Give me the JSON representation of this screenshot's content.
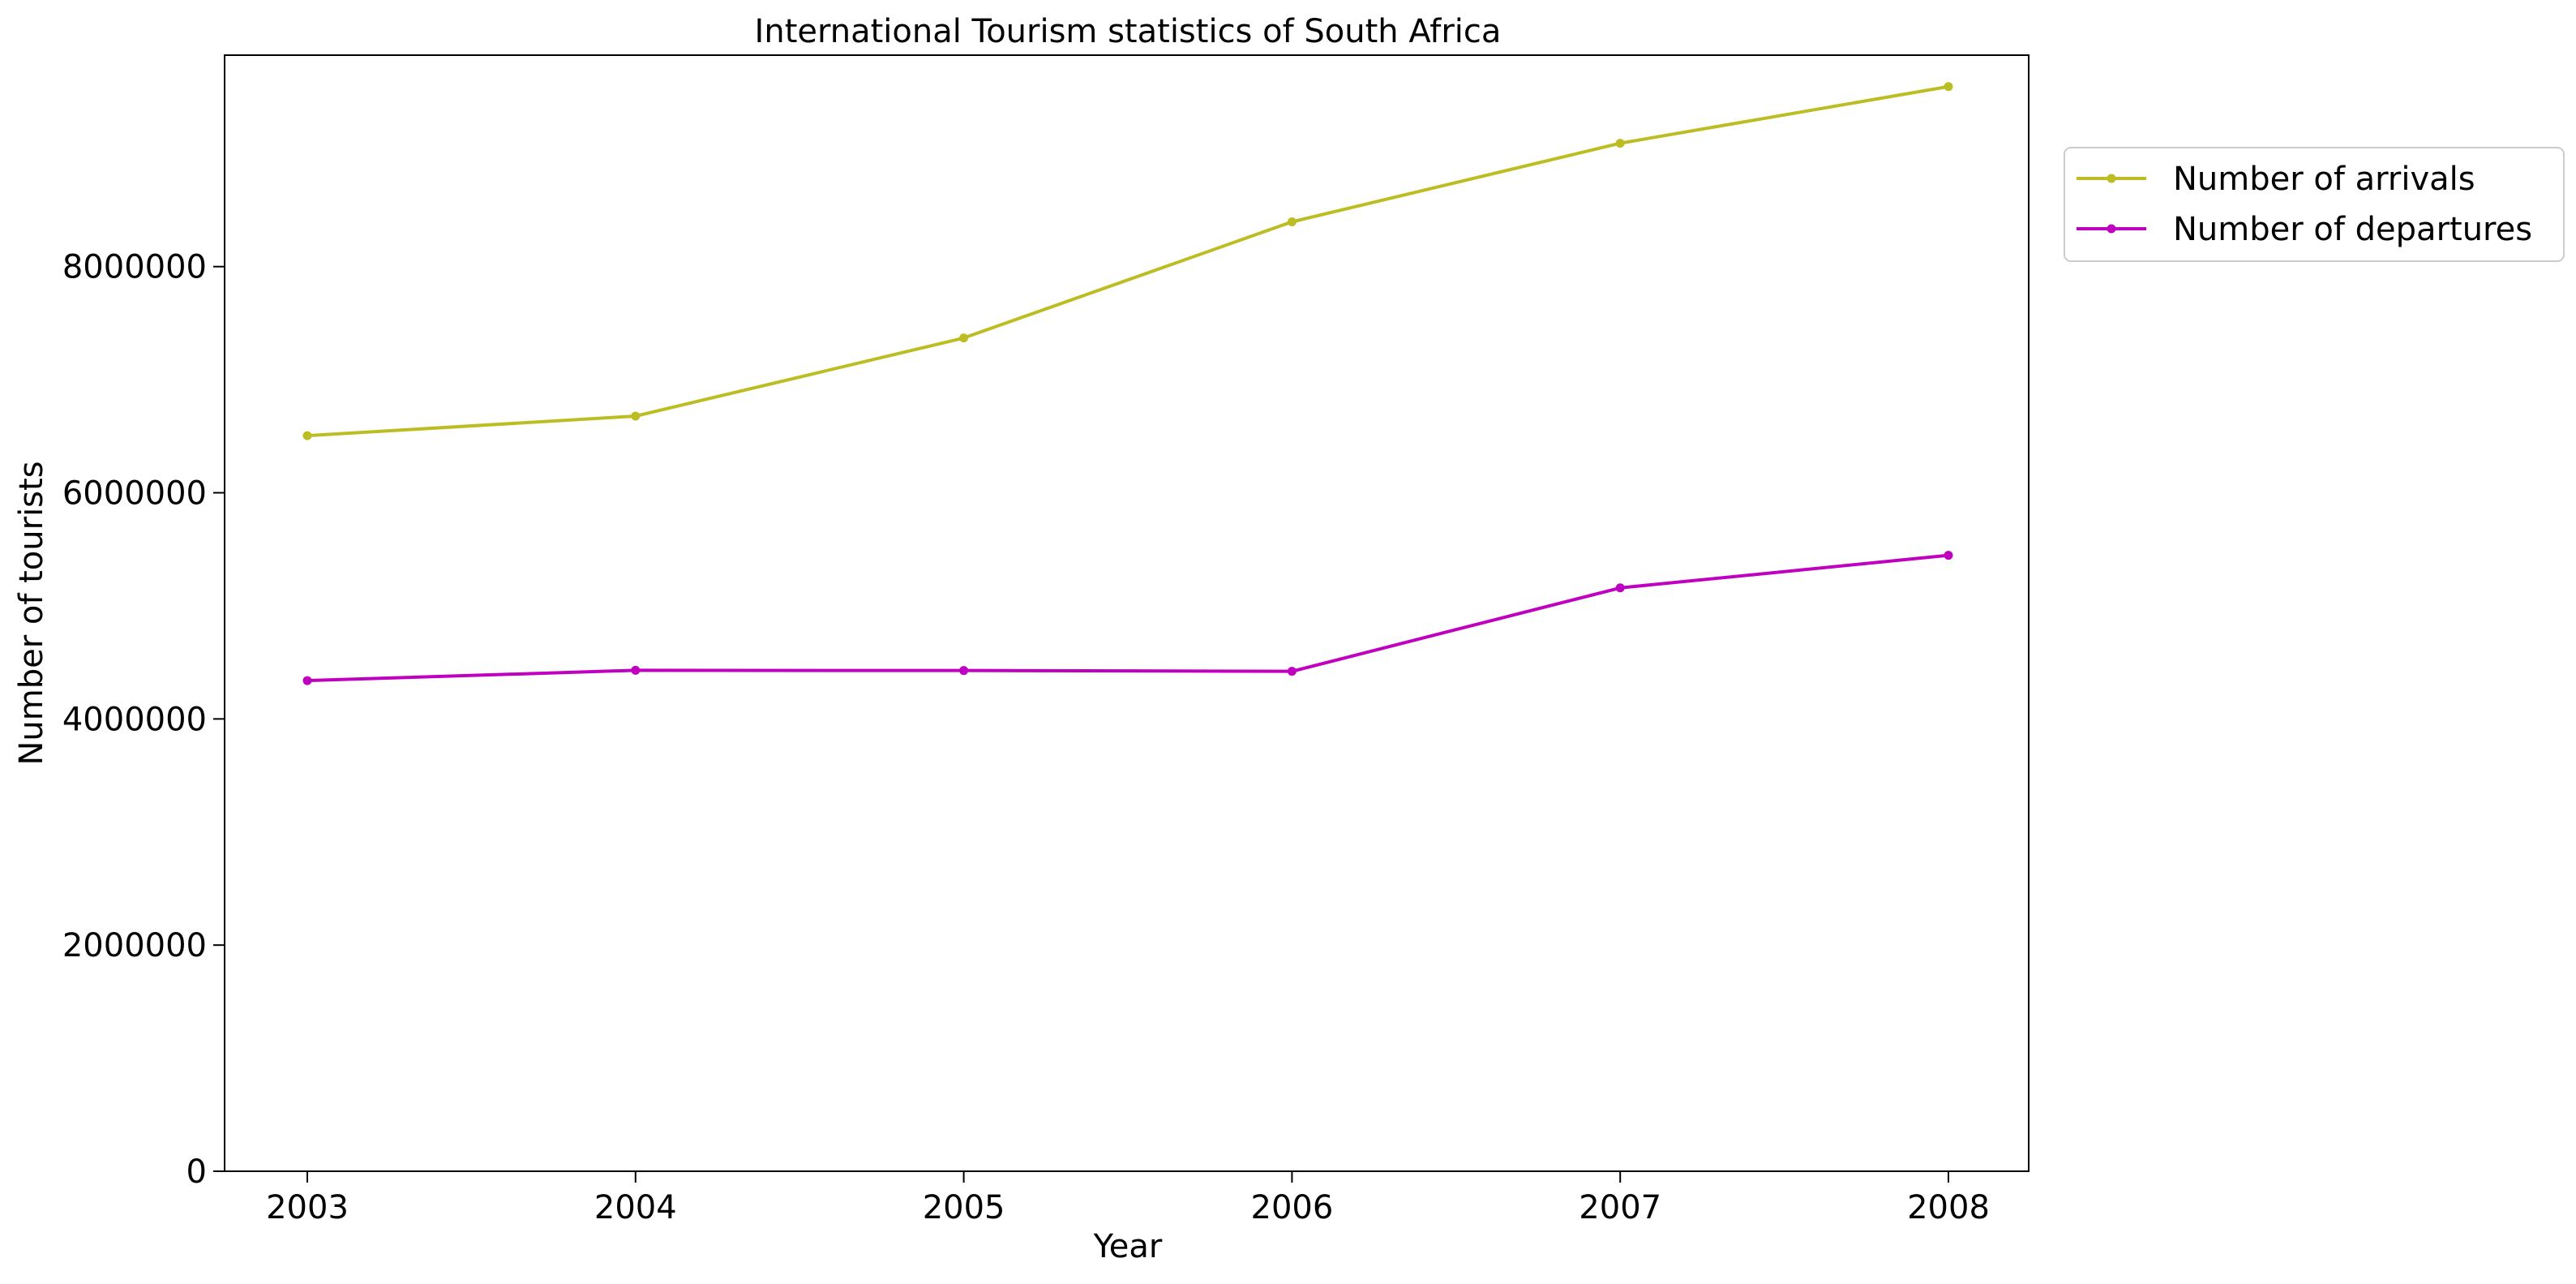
{
  "chart_data": {
    "type": "line",
    "title": "International Tourism statistics of South Africa",
    "xlabel": "Year",
    "ylabel": "Number of tourists",
    "x": [
      "2003",
      "2004",
      "2005",
      "2006",
      "2007",
      "2008"
    ],
    "series": [
      {
        "name": "Number of arrivals",
        "color": "#bcbd22",
        "values": [
          6505000,
          6678000,
          7369000,
          8396000,
          9091000,
          9592000
        ]
      },
      {
        "name": "Number of departures",
        "color": "#c000c0",
        "values": [
          4339000,
          4430000,
          4428000,
          4421000,
          5159000,
          5447000
        ]
      }
    ],
    "yticks": [
      0,
      2000000,
      4000000,
      6000000,
      8000000
    ],
    "ytick_labels": [
      "0",
      "2000000",
      "4000000",
      "6000000",
      "8000000"
    ],
    "ylim": [
      0,
      9870000
    ],
    "grid": false,
    "legend_position": "outside top-right",
    "marker": "dot"
  }
}
